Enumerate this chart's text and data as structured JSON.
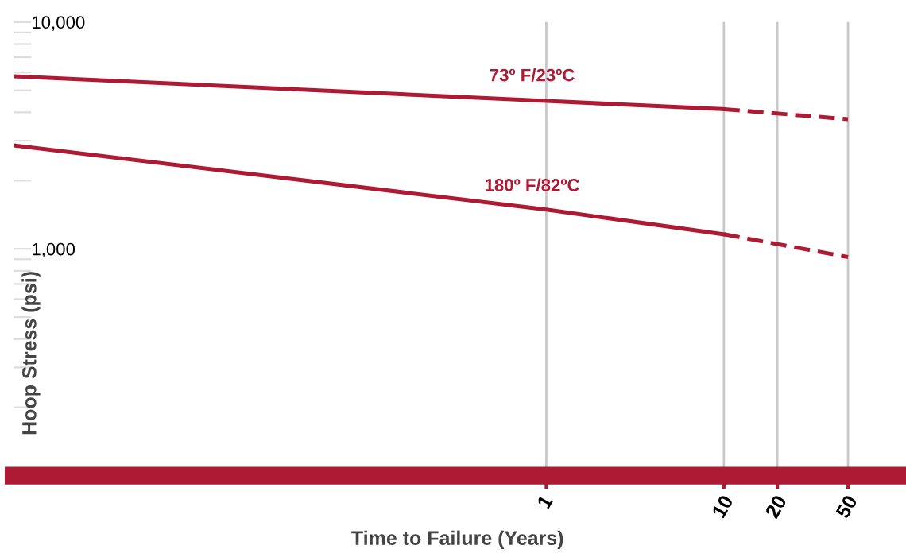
{
  "chart_data": {
    "type": "line",
    "xlabel": "Time to Failure (Years)",
    "ylabel": "Hoop Stress (psi)",
    "log": "xy",
    "xlim": [
      0.001,
      100
    ],
    "xticks": [
      1,
      10,
      20,
      50
    ],
    "ylim": [
      100,
      10000
    ],
    "yticks": [
      {
        "value": 200,
        "label": null
      },
      {
        "value": 300,
        "label": null
      },
      {
        "value": 400,
        "label": null
      },
      {
        "value": 500,
        "label": null
      },
      {
        "value": 600,
        "label": null
      },
      {
        "value": 700,
        "label": null
      },
      {
        "value": 800,
        "label": null
      },
      {
        "value": 900,
        "label": null
      },
      {
        "value": 1000,
        "label": "1,000"
      },
      {
        "value": 2000,
        "label": null
      },
      {
        "value": 3000,
        "label": null
      },
      {
        "value": 4000,
        "label": null
      },
      {
        "value": 5000,
        "label": null
      },
      {
        "value": 6000,
        "label": null
      },
      {
        "value": 7000,
        "label": null
      },
      {
        "value": 8000,
        "label": null
      },
      {
        "value": 9000,
        "label": null
      },
      {
        "value": 10000,
        "label": "10,000"
      }
    ],
    "grid": "x",
    "legend": false,
    "marker": "none",
    "series": [
      {
        "name": "73º F/23ºC",
        "color": "#ae1a34",
        "line_style": "solid",
        "x": [
          0.001,
          1,
          10
        ],
        "values": [
          5770,
          4490,
          4130
        ]
      },
      {
        "color": "#ae1a34",
        "line_style": "dashed",
        "x": [
          10,
          50
        ],
        "values": [
          4130,
          3730
        ]
      },
      {
        "name": "180º F/82ºC",
        "color": "#ae1a34",
        "line_style": "solid",
        "x": [
          0.001,
          1,
          10
        ],
        "values": [
          2860,
          1490,
          1160
        ]
      },
      {
        "color": "#ae1a34",
        "line_style": "dashed",
        "x": [
          10,
          50
        ],
        "values": [
          1160,
          920
        ]
      }
    ]
  }
}
